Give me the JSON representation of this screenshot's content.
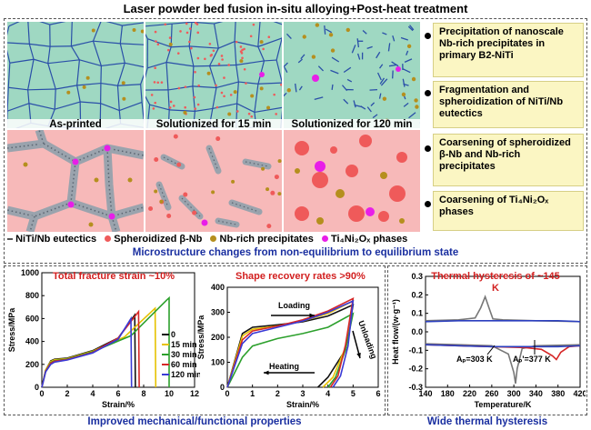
{
  "title": "Laser powder bed fusion in-situ alloying+Post-heat treatment",
  "panels": {
    "as_printed": "As-printed",
    "sol15": "Solutionized for 15 min",
    "sol120": "Solutionized for 120 min"
  },
  "bullets": [
    "Precipitation of nanoscale Nb-rich precipitates in primary B2-NiTi",
    "Fragmentation and spheroidization of NiTi/Nb eutectics",
    "Coarsening of spheroidized β-Nb and Nb-rich precipitates",
    "Coarsening of Ti₄Ni₂Oₓ phases"
  ],
  "legend": {
    "eutectics": "NiTi/Nb eutectics",
    "beta_nb": "Spheroidized β-Nb",
    "nb_rich": "Nb-rich precipitates",
    "ti4ni2ox": "Ti₄Ni₂Oₓ phases"
  },
  "caption_top": "Microstructure changes from non-equilibrium to equilibrium state",
  "colors": {
    "matrix_green": "#9fd8c2",
    "matrix_pink": "#f7b9b9",
    "grain_boundary": "#2a4fa8",
    "eutectic_gray": "#9aa3ad",
    "beta_nb_red": "#ef5a5a",
    "nb_rich_gold": "#b58f1e",
    "ti4ni2ox_magenta": "#e81ee8"
  },
  "chart_data": [
    {
      "type": "line",
      "title": "Total fracture strain ~10%",
      "xlabel": "Strain/%",
      "ylabel": "Stress/MPa",
      "xlim": [
        0,
        12
      ],
      "ylim": [
        0,
        1000
      ],
      "xticks": [
        0,
        2,
        4,
        6,
        8,
        10,
        12
      ],
      "yticks": [
        0,
        200,
        400,
        600,
        800,
        1000
      ],
      "series": [
        {
          "name": "0",
          "color": "#111111",
          "x": [
            0,
            0.3,
            0.7,
            1.0,
            2.0,
            4.0,
            6.0,
            7.3,
            7.35
          ],
          "y": [
            0,
            150,
            230,
            245,
            255,
            320,
            430,
            630,
            0
          ]
        },
        {
          "name": "15 min",
          "color": "#e6c200",
          "x": [
            0,
            0.3,
            0.7,
            1.0,
            2.0,
            4.0,
            6.5,
            8.9,
            8.95
          ],
          "y": [
            0,
            150,
            225,
            240,
            250,
            315,
            440,
            690,
            0
          ]
        },
        {
          "name": "30 min",
          "color": "#2ca02c",
          "x": [
            0,
            0.3,
            0.7,
            1.0,
            2.0,
            4.0,
            7.0,
            9.8,
            10.0,
            10.0
          ],
          "y": [
            0,
            140,
            215,
            232,
            245,
            310,
            450,
            760,
            780,
            0
          ]
        },
        {
          "name": "60 min",
          "color": "#d62728",
          "x": [
            0,
            0.3,
            0.7,
            1.0,
            2.0,
            4.0,
            6.0,
            7.6,
            7.65
          ],
          "y": [
            0,
            140,
            210,
            228,
            242,
            305,
            430,
            660,
            0
          ]
        },
        {
          "name": "120 min",
          "color": "#3a3ad6",
          "x": [
            0,
            0.3,
            0.7,
            1.0,
            2.0,
            4.0,
            6.0,
            7.0,
            7.05
          ],
          "y": [
            0,
            135,
            200,
            220,
            238,
            300,
            420,
            600,
            0
          ]
        }
      ]
    },
    {
      "type": "line",
      "title": "Shape recovery rates >90%",
      "xlabel": "Strain/%",
      "ylabel": "Stress/MPa",
      "xlim": [
        0,
        6
      ],
      "ylim": [
        0,
        400
      ],
      "xticks": [
        0,
        1,
        2,
        3,
        4,
        5,
        6
      ],
      "yticks": [
        0,
        100,
        200,
        300,
        400
      ],
      "annotations": [
        "Loading",
        "Unloading",
        "Heating"
      ],
      "series": [
        {
          "name": "0",
          "color": "#111111",
          "x": [
            0.0,
            0.6,
            1.0,
            2.0,
            3.0,
            4.0,
            5.0,
            4.7,
            4.0,
            3.6
          ],
          "y": [
            0,
            215,
            240,
            250,
            262,
            285,
            330,
            150,
            40,
            0
          ]
        },
        {
          "name": "15 min",
          "color": "#e6c200",
          "x": [
            0.0,
            0.6,
            1.0,
            2.0,
            3.0,
            4.0,
            5.0,
            4.7,
            4.2,
            3.8
          ],
          "y": [
            0,
            205,
            232,
            245,
            265,
            295,
            345,
            160,
            40,
            0
          ]
        },
        {
          "name": "30 min",
          "color": "#2ca02c",
          "x": [
            0.0,
            0.6,
            1.0,
            2.0,
            3.0,
            4.0,
            5.0,
            4.7,
            4.3,
            4.0
          ],
          "y": [
            0,
            120,
            165,
            195,
            215,
            240,
            295,
            150,
            40,
            0
          ]
        },
        {
          "name": "60 min",
          "color": "#d62728",
          "x": [
            0.0,
            0.6,
            1.0,
            2.0,
            3.0,
            4.0,
            5.0,
            4.7,
            4.4,
            4.1
          ],
          "y": [
            0,
            190,
            225,
            245,
            270,
            305,
            355,
            170,
            45,
            0
          ]
        },
        {
          "name": "120 min",
          "color": "#3a3ad6",
          "x": [
            0.0,
            0.6,
            1.0,
            2.0,
            3.0,
            4.0,
            5.0,
            4.8,
            4.5,
            4.2
          ],
          "y": [
            0,
            175,
            215,
            240,
            265,
            300,
            345,
            165,
            45,
            0
          ]
        }
      ]
    },
    {
      "type": "line",
      "title": "Thermal hysteresis of ~145 K",
      "xlabel": "Temperature/K",
      "ylabel": "Heat flow/(w·g⁻¹)",
      "xlim": [
        140,
        420
      ],
      "ylim": [
        -0.3,
        0.3
      ],
      "xticks": [
        140,
        180,
        220,
        260,
        300,
        340,
        380,
        420
      ],
      "yticks": [
        -0.3,
        -0.2,
        -0.1,
        0.0,
        0.1,
        0.2,
        0.3
      ],
      "annotations": [
        "Aₚ=303 K",
        "Aₚ'=377 K"
      ],
      "series": [
        {
          "name": "cooling-gray",
          "color": "#777777",
          "x": [
            140,
            200,
            230,
            240,
            248,
            255,
            262,
            280,
            340,
            420
          ],
          "y": [
            0.06,
            0.065,
            0.075,
            0.13,
            0.19,
            0.13,
            0.07,
            0.065,
            0.06,
            0.055
          ]
        },
        {
          "name": "cooling-blue",
          "color": "#2b3fbf",
          "x": [
            140,
            200,
            260,
            320,
            380,
            420
          ],
          "y": [
            0.055,
            0.06,
            0.06,
            0.06,
            0.06,
            0.055
          ]
        },
        {
          "name": "heating-gray",
          "color": "#777777",
          "x": [
            140,
            200,
            260,
            290,
            300,
            303,
            306,
            315,
            340,
            420
          ],
          "y": [
            -0.065,
            -0.07,
            -0.075,
            -0.12,
            -0.22,
            -0.28,
            -0.2,
            -0.09,
            -0.075,
            -0.07
          ]
        },
        {
          "name": "heating-red",
          "color": "#d62728",
          "x": [
            140,
            200,
            260,
            320,
            350,
            370,
            377,
            385,
            400,
            420
          ],
          "y": [
            -0.07,
            -0.075,
            -0.08,
            -0.085,
            -0.095,
            -0.13,
            -0.15,
            -0.11,
            -0.08,
            -0.075
          ]
        },
        {
          "name": "heating-blue",
          "color": "#2b3fbf",
          "x": [
            140,
            200,
            260,
            320,
            380,
            420
          ],
          "y": [
            -0.07,
            -0.075,
            -0.08,
            -0.08,
            -0.08,
            -0.075
          ]
        }
      ]
    }
  ],
  "chart_legend_labels": [
    "0",
    "15 min",
    "30 min",
    "60 min",
    "120 min"
  ],
  "captions_bottom": {
    "left": "Improved mechanical/functional properties",
    "right": "Wide thermal hysteresis"
  }
}
